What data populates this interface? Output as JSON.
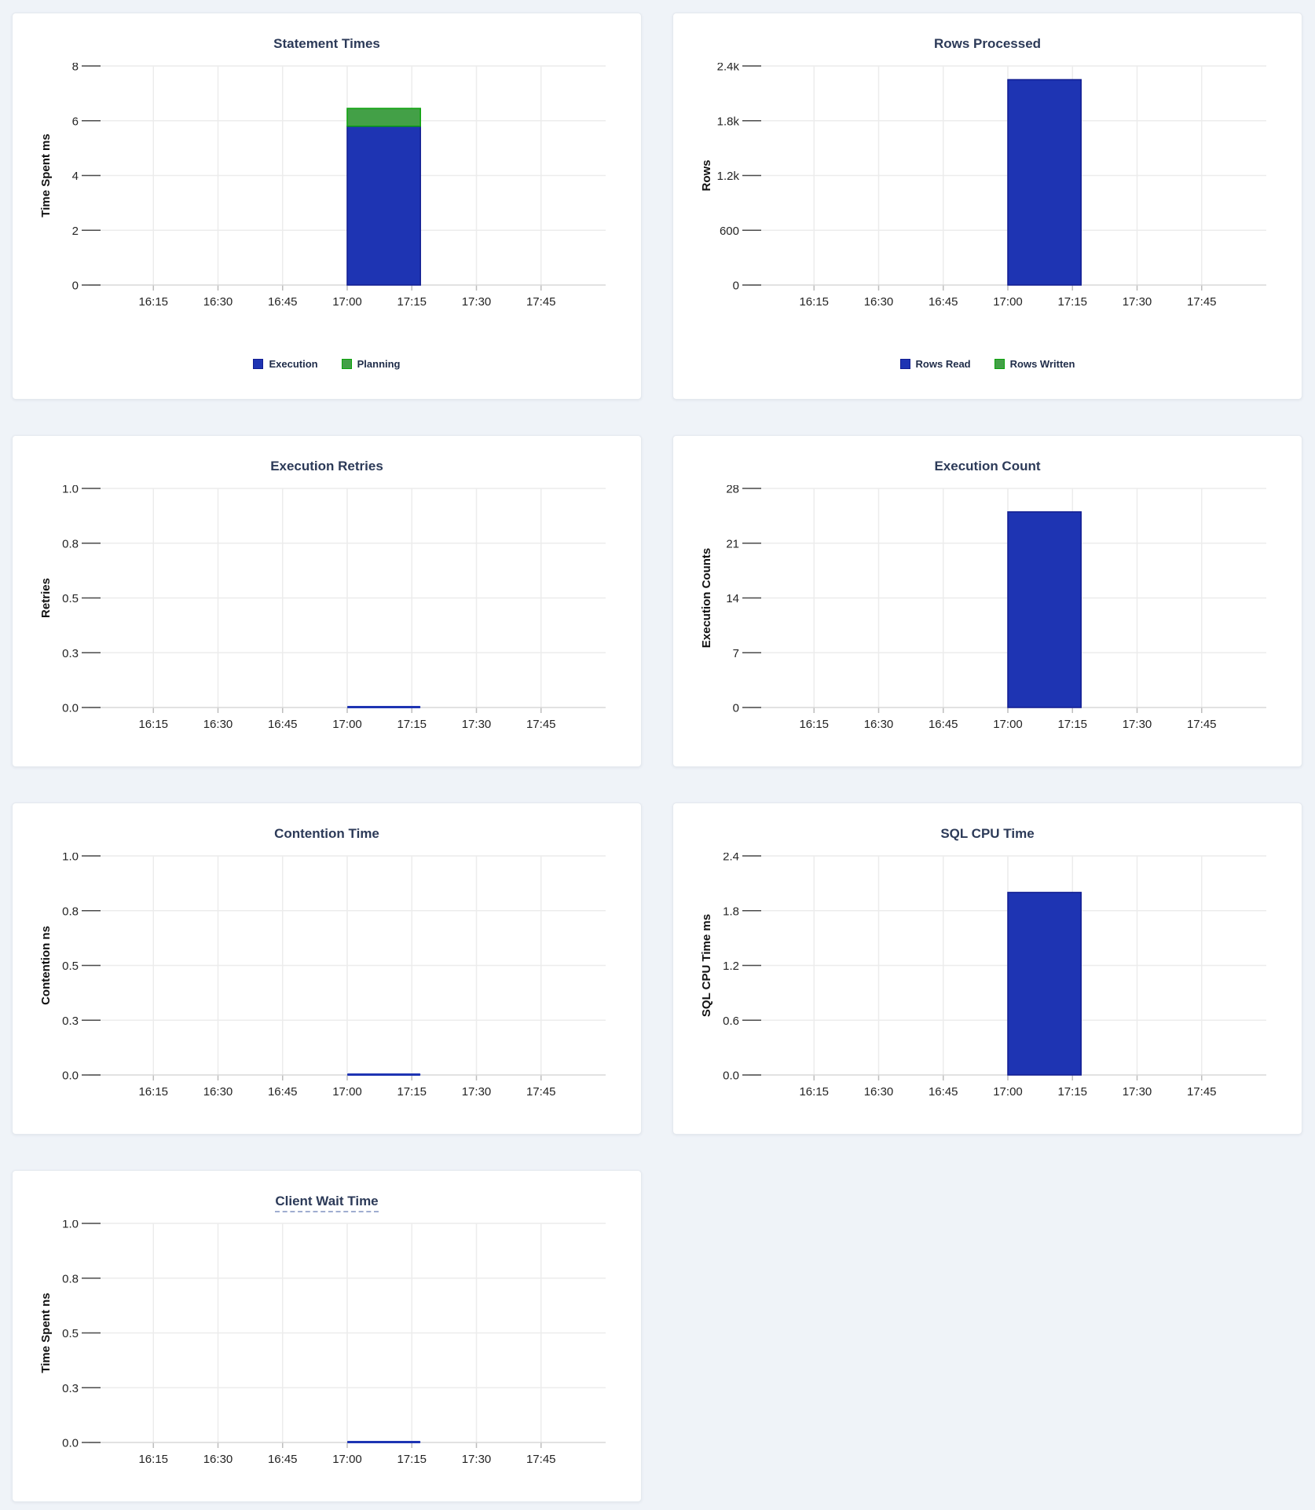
{
  "page_bg": "#eff3f8",
  "palette": {
    "blue": {
      "fill": "#1e34b3",
      "stroke": "#111d91"
    },
    "green": {
      "fill": "#43a047",
      "stroke": "#0aa20a"
    }
  },
  "chart_data": [
    {
      "type": "bar",
      "stacked": true,
      "title": "Statement Times",
      "ylabel": "Time Spent ms",
      "ylim": [
        0,
        8
      ],
      "yticks": [
        0,
        2,
        4,
        6,
        8
      ],
      "ytick_labels": [
        "0",
        "2",
        "4",
        "6",
        "8"
      ],
      "x_ticks": [
        "16:15",
        "16:30",
        "16:45",
        "17:00",
        "17:15",
        "17:30",
        "17:45"
      ],
      "x_range": [
        "16:00",
        "18:00"
      ],
      "bar_interval": [
        "17:00",
        "17:17"
      ],
      "grid": true,
      "legend": true,
      "legend_position": "bottom",
      "series": [
        {
          "name": "Execution",
          "color": "blue",
          "values": [
            5.8
          ]
        },
        {
          "name": "Planning",
          "color": "green",
          "values": [
            0.65
          ]
        }
      ]
    },
    {
      "type": "bar",
      "stacked": true,
      "title": "Rows Processed",
      "ylabel": "Rows",
      "ylim": [
        0,
        2400
      ],
      "yticks": [
        0,
        600,
        1200,
        1800,
        2400
      ],
      "ytick_labels": [
        "0",
        "600",
        "1.2k",
        "1.8k",
        "2.4k"
      ],
      "x_ticks": [
        "16:15",
        "16:30",
        "16:45",
        "17:00",
        "17:15",
        "17:30",
        "17:45"
      ],
      "x_range": [
        "16:00",
        "18:00"
      ],
      "bar_interval": [
        "17:00",
        "17:17"
      ],
      "grid": true,
      "legend": true,
      "legend_position": "bottom",
      "series": [
        {
          "name": "Rows Read",
          "color": "blue",
          "values": [
            2250
          ]
        },
        {
          "name": "Rows Written",
          "color": "green",
          "values": [
            0
          ]
        }
      ]
    },
    {
      "type": "bar",
      "stacked": false,
      "title": "Execution Retries",
      "ylabel": "Retries",
      "ylim": [
        0,
        1
      ],
      "yticks": [
        0,
        0.25,
        0.5,
        0.75,
        1.0
      ],
      "ytick_labels": [
        "0.0",
        "0.3",
        "0.5",
        "0.8",
        "1.0"
      ],
      "x_ticks": [
        "16:15",
        "16:30",
        "16:45",
        "17:00",
        "17:15",
        "17:30",
        "17:45"
      ],
      "x_range": [
        "16:00",
        "18:00"
      ],
      "bar_interval": [
        "17:00",
        "17:17"
      ],
      "grid": true,
      "legend": false,
      "series": [
        {
          "name": "Retries",
          "color": "blue",
          "values": [
            0
          ]
        }
      ]
    },
    {
      "type": "bar",
      "stacked": false,
      "title": "Execution Count",
      "ylabel": "Execution Counts",
      "ylim": [
        0,
        28
      ],
      "yticks": [
        0,
        7,
        14,
        21,
        28
      ],
      "ytick_labels": [
        "0",
        "7",
        "14",
        "21",
        "28"
      ],
      "x_ticks": [
        "16:15",
        "16:30",
        "16:45",
        "17:00",
        "17:15",
        "17:30",
        "17:45"
      ],
      "x_range": [
        "16:00",
        "18:00"
      ],
      "bar_interval": [
        "17:00",
        "17:17"
      ],
      "grid": true,
      "legend": false,
      "series": [
        {
          "name": "Execution Count",
          "color": "blue",
          "values": [
            25
          ]
        }
      ]
    },
    {
      "type": "bar",
      "stacked": false,
      "title": "Contention Time",
      "ylabel": "Contention ns",
      "ylim": [
        0,
        1
      ],
      "yticks": [
        0,
        0.25,
        0.5,
        0.75,
        1.0
      ],
      "ytick_labels": [
        "0.0",
        "0.3",
        "0.5",
        "0.8",
        "1.0"
      ],
      "x_ticks": [
        "16:15",
        "16:30",
        "16:45",
        "17:00",
        "17:15",
        "17:30",
        "17:45"
      ],
      "x_range": [
        "16:00",
        "18:00"
      ],
      "bar_interval": [
        "17:00",
        "17:17"
      ],
      "grid": true,
      "legend": false,
      "series": [
        {
          "name": "Contention",
          "color": "blue",
          "values": [
            0
          ]
        }
      ]
    },
    {
      "type": "bar",
      "stacked": false,
      "title": "SQL CPU Time",
      "ylabel": "SQL CPU Time ms",
      "ylim": [
        0,
        2.4
      ],
      "yticks": [
        0,
        0.6,
        1.2,
        1.8,
        2.4
      ],
      "ytick_labels": [
        "0.0",
        "0.6",
        "1.2",
        "1.8",
        "2.4"
      ],
      "x_ticks": [
        "16:15",
        "16:30",
        "16:45",
        "17:00",
        "17:15",
        "17:30",
        "17:45"
      ],
      "x_range": [
        "16:00",
        "18:00"
      ],
      "bar_interval": [
        "17:00",
        "17:17"
      ],
      "grid": true,
      "legend": false,
      "series": [
        {
          "name": "SQL CPU Time",
          "color": "blue",
          "values": [
            2.0
          ]
        }
      ]
    },
    {
      "type": "bar",
      "stacked": false,
      "title": "Client Wait Time",
      "title_tooltip": true,
      "ylabel": "Time Spent ns",
      "ylim": [
        0,
        1
      ],
      "yticks": [
        0,
        0.25,
        0.5,
        0.75,
        1.0
      ],
      "ytick_labels": [
        "0.0",
        "0.3",
        "0.5",
        "0.8",
        "1.0"
      ],
      "x_ticks": [
        "16:15",
        "16:30",
        "16:45",
        "17:00",
        "17:15",
        "17:30",
        "17:45"
      ],
      "x_range": [
        "16:00",
        "18:00"
      ],
      "bar_interval": [
        "17:00",
        "17:17"
      ],
      "grid": true,
      "legend": false,
      "series": [
        {
          "name": "Client Wait",
          "color": "blue",
          "values": [
            0
          ]
        }
      ]
    }
  ]
}
